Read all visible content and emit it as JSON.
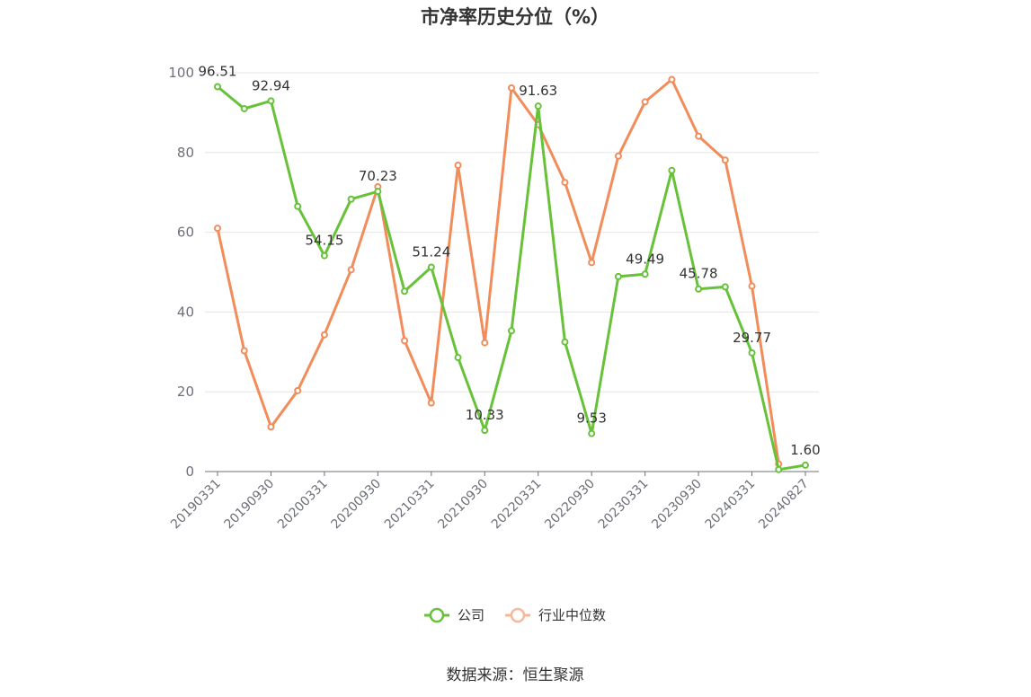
{
  "chart_data": {
    "type": "line",
    "title": "市净率历史分位（%）",
    "ylim": [
      0,
      100
    ],
    "yticks": [
      "0",
      "20",
      "40",
      "60",
      "80",
      "100"
    ],
    "x": [
      "20190331",
      "20190630",
      "20190930",
      "20191231",
      "20200331",
      "20200630",
      "20200930",
      "20201231",
      "20210331",
      "20210630",
      "20210930",
      "20211231",
      "20220331",
      "20220630",
      "20220930",
      "20221231",
      "20230331",
      "20230630",
      "20230930",
      "20231231",
      "20240331",
      "20240630",
      "20240827"
    ],
    "xtick_labels": [
      "20190331",
      "20190930",
      "20200331",
      "20200930",
      "20210331",
      "20210930",
      "20220331",
      "20220930",
      "20230331",
      "20230930",
      "20240331",
      "20240827"
    ],
    "series": [
      {
        "name": "公司",
        "color": "#67c23a",
        "values": [
          96.51,
          91.0,
          92.94,
          66.5,
          54.15,
          68.3,
          70.23,
          45.2,
          51.24,
          28.6,
          10.33,
          35.3,
          91.63,
          32.5,
          9.53,
          48.9,
          49.49,
          75.5,
          45.78,
          46.3,
          29.77,
          0.5,
          1.6
        ],
        "labels": {
          "0": "96.51",
          "2": "92.94",
          "4": "54.15",
          "6": "70.23",
          "8": "51.24",
          "10": "10.33",
          "12": "91.63",
          "14": "9.53",
          "16": "49.49",
          "18": "45.78",
          "20": "29.77",
          "22": "1.60"
        }
      },
      {
        "name": "行业中位数",
        "color": "#f28c5a",
        "values": [
          61.0,
          30.3,
          11.2,
          20.3,
          34.3,
          50.6,
          71.4,
          32.8,
          17.2,
          76.8,
          32.3,
          96.2,
          87.0,
          72.5,
          52.4,
          79.1,
          92.7,
          98.3,
          84.1,
          78.1,
          46.5,
          1.9,
          null
        ],
        "labels": {}
      }
    ],
    "legend_position": "bottom-center",
    "grid": true
  },
  "source_text": "数据来源：恒生聚源"
}
